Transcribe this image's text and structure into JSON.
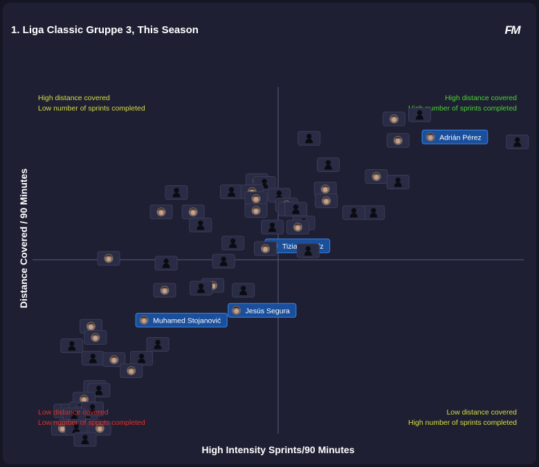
{
  "title": "1. Liga Classic Gruppe 3, This Season",
  "logo": "FM",
  "colors": {
    "background": "#1e1f33",
    "axis": "#5c5e78",
    "chip": "#2a2b44",
    "chip_border": "#3b3d57",
    "highlight_fill": "#1a4f9c",
    "highlight_border": "#3d86e6",
    "yellow": "#d9df3f",
    "green": "#49d62e",
    "red": "#e2302b"
  },
  "quadrants": {
    "top_left": {
      "line1": "High distance covered",
      "line2": "Low number of sprints completed",
      "color1": "#d9df3f",
      "color2": "#d9df3f"
    },
    "top_right": {
      "line1": "High distance covered",
      "line2": "High number of sprints completed",
      "color1": "#49d62e",
      "color2": "#49d62e"
    },
    "bottom_left": {
      "line1": "Low distance covered",
      "line2": "Low number of sprints completed",
      "color1": "#e2302b",
      "color2": "#e2302b"
    },
    "bottom_right": {
      "line1": "Low distance covered",
      "line2": "High number of sprints completed",
      "color1": "#d9df3f",
      "color2": "#d9df3f"
    }
  },
  "chart_data": {
    "type": "scatter",
    "title": "1. Liga Classic Gruppe 3, This Season",
    "xlabel": "High Intensity Sprints/90 Minutes",
    "ylabel": "Distance Covered / 90 Minutes",
    "xlim": [
      0,
      100
    ],
    "ylim": [
      0,
      100
    ],
    "x_ticks_shown": false,
    "y_ticks_shown": false,
    "grid": false,
    "reference_lines": {
      "x": 49.6,
      "y": 46.4
    },
    "points": [
      {
        "x": 73.6,
        "y": 90.8,
        "icon": "face-photo"
      },
      {
        "x": 78.8,
        "y": 92.0,
        "icon": "silhouette"
      },
      {
        "x": 81.0,
        "y": 85.6,
        "icon": "face-photo",
        "label": "Adrián Pérez"
      },
      {
        "x": 56.3,
        "y": 85.2,
        "icon": "silhouette"
      },
      {
        "x": 74.4,
        "y": 84.6,
        "icon": "face-photo"
      },
      {
        "x": 98.7,
        "y": 84.2,
        "icon": "silhouette"
      },
      {
        "x": 60.2,
        "y": 77.6,
        "icon": "silhouette"
      },
      {
        "x": 70.0,
        "y": 74.2,
        "icon": "face-photo"
      },
      {
        "x": 74.4,
        "y": 72.6,
        "icon": "silhouette"
      },
      {
        "x": 45.7,
        "y": 73.0,
        "icon": "face-photo"
      },
      {
        "x": 47.2,
        "y": 72.2,
        "icon": "silhouette"
      },
      {
        "x": 29.3,
        "y": 69.6,
        "icon": "silhouette"
      },
      {
        "x": 40.5,
        "y": 69.8,
        "icon": "silhouette"
      },
      {
        "x": 44.7,
        "y": 69.8,
        "icon": "face-photo"
      },
      {
        "x": 59.6,
        "y": 70.6,
        "icon": "face-photo"
      },
      {
        "x": 59.8,
        "y": 67.2,
        "icon": "face-photo"
      },
      {
        "x": 50.2,
        "y": 68.8,
        "icon": "silhouette"
      },
      {
        "x": 45.5,
        "y": 67.8,
        "icon": "face-photo"
      },
      {
        "x": 51.7,
        "y": 66.0,
        "icon": "face-photo"
      },
      {
        "x": 52.3,
        "y": 64.8,
        "icon": "silhouette"
      },
      {
        "x": 53.6,
        "y": 64.8,
        "icon": "silhouette"
      },
      {
        "x": 69.4,
        "y": 63.8,
        "icon": "silhouette"
      },
      {
        "x": 65.4,
        "y": 63.8,
        "icon": "silhouette"
      },
      {
        "x": 26.2,
        "y": 64.0,
        "icon": "face-photo"
      },
      {
        "x": 32.7,
        "y": 64.0,
        "icon": "face-photo"
      },
      {
        "x": 45.5,
        "y": 64.4,
        "icon": "face-photo"
      },
      {
        "x": 55.2,
        "y": 60.8,
        "icon": "silhouette"
      },
      {
        "x": 54.0,
        "y": 59.6,
        "icon": "face-photo"
      },
      {
        "x": 34.2,
        "y": 60.2,
        "icon": "silhouette"
      },
      {
        "x": 48.8,
        "y": 59.6,
        "icon": "silhouette"
      },
      {
        "x": 49.0,
        "y": 54.2,
        "icon": "face-photo",
        "label": "Tiziano Stolz"
      },
      {
        "x": 40.8,
        "y": 55.0,
        "icon": "silhouette"
      },
      {
        "x": 47.4,
        "y": 53.4,
        "icon": "face-photo"
      },
      {
        "x": 56.1,
        "y": 52.8,
        "icon": "silhouette"
      },
      {
        "x": 15.5,
        "y": 50.6,
        "icon": "face-photo"
      },
      {
        "x": 27.2,
        "y": 49.2,
        "icon": "silhouette"
      },
      {
        "x": 38.9,
        "y": 49.8,
        "icon": "silhouette"
      },
      {
        "x": 36.7,
        "y": 42.8,
        "icon": "face-photo"
      },
      {
        "x": 34.3,
        "y": 42.0,
        "icon": "silhouette"
      },
      {
        "x": 26.9,
        "y": 41.4,
        "icon": "face-photo"
      },
      {
        "x": 42.9,
        "y": 41.4,
        "icon": "silhouette"
      },
      {
        "x": 41.5,
        "y": 35.6,
        "icon": "face-photo",
        "label": "Jesús Segura"
      },
      {
        "x": 22.7,
        "y": 32.8,
        "icon": "face-photo",
        "label": "Muhamed Stojanović"
      },
      {
        "x": 11.9,
        "y": 31.0,
        "icon": "face-photo"
      },
      {
        "x": 12.8,
        "y": 27.8,
        "icon": "face-photo"
      },
      {
        "x": 8.0,
        "y": 25.4,
        "icon": "silhouette"
      },
      {
        "x": 25.5,
        "y": 25.8,
        "icon": "silhouette"
      },
      {
        "x": 12.3,
        "y": 21.8,
        "icon": "silhouette"
      },
      {
        "x": 22.2,
        "y": 21.8,
        "icon": "silhouette"
      },
      {
        "x": 16.6,
        "y": 21.4,
        "icon": "face-photo"
      },
      {
        "x": 20.1,
        "y": 18.2,
        "icon": "face-photo"
      },
      {
        "x": 12.7,
        "y": 13.4,
        "icon": "silhouette"
      },
      {
        "x": 13.5,
        "y": 12.6,
        "icon": "silhouette"
      },
      {
        "x": 10.5,
        "y": 10.0,
        "icon": "face-photo"
      },
      {
        "x": 6.6,
        "y": 6.6,
        "icon": "silhouette"
      },
      {
        "x": 8.0,
        "y": 6.6,
        "icon": "face-photo"
      },
      {
        "x": 9.7,
        "y": 7.2,
        "icon": "silhouette"
      },
      {
        "x": 11.0,
        "y": 6.0,
        "icon": "silhouette"
      },
      {
        "x": 12.2,
        "y": 7.2,
        "icon": "silhouette"
      },
      {
        "x": 8.5,
        "y": 5.4,
        "icon": "silhouette"
      },
      {
        "x": 7.7,
        "y": 2.2,
        "icon": "silhouette"
      },
      {
        "x": 6.1,
        "y": 1.6,
        "icon": "face-photo"
      },
      {
        "x": 8.9,
        "y": 1.6,
        "icon": "silhouette"
      },
      {
        "x": 13.7,
        "y": 1.6,
        "icon": "face-photo"
      },
      {
        "x": 10.7,
        "y": -1.6,
        "icon": "silhouette"
      }
    ]
  }
}
